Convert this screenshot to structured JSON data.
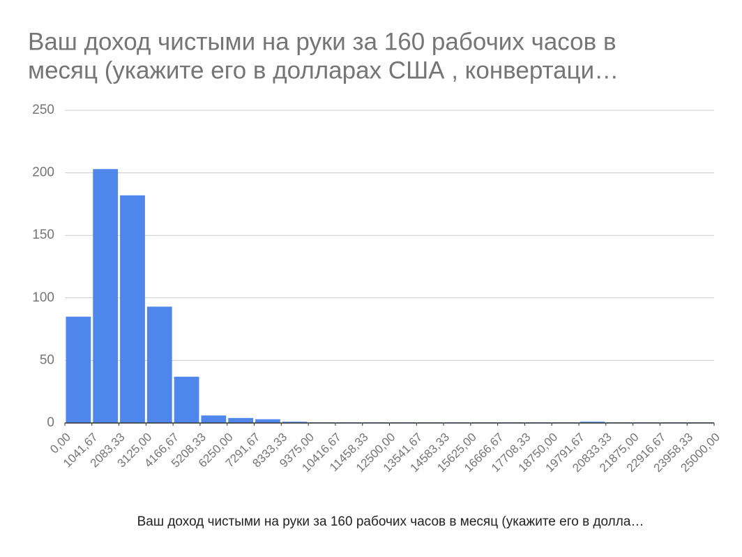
{
  "chart_data": {
    "type": "histogram",
    "title": [
      "Ваш доход чистыми на руки за 160 рабочих часов в",
      "месяц (укажите его в  долларах США , конвертаци…"
    ],
    "x_label": "Ваш доход чистыми на руки за 160 рабочих часов в месяц (укажите его в  долла…",
    "bins": [
      0,
      1041.67,
      2083.33,
      3125,
      4166.67,
      5208.33,
      6250,
      7291.67,
      8333.33,
      9375,
      10416.67,
      11458.33,
      12500,
      13541.67,
      14583.33,
      15625,
      16666.67,
      17708.33,
      18750,
      19791.67,
      20833.33,
      21875,
      22916.67,
      23958.33,
      25000
    ],
    "values": [
      85,
      203,
      182,
      93,
      37,
      6,
      4,
      3,
      1,
      0,
      0,
      0,
      0,
      0,
      0,
      0,
      0,
      0,
      0,
      1,
      0,
      0,
      0,
      0
    ],
    "color": "#4f86ec",
    "xlim": [
      0,
      25000
    ],
    "xticks": [
      {
        "value": 0,
        "label": "0,00"
      },
      {
        "value": 1041.67,
        "label": "1041,67"
      },
      {
        "value": 2083.33,
        "label": "2083,33"
      },
      {
        "value": 3125,
        "label": "3125,00"
      },
      {
        "value": 4166.67,
        "label": "4166,67"
      },
      {
        "value": 5208.33,
        "label": "5208,33"
      },
      {
        "value": 6250,
        "label": "6250,00"
      },
      {
        "value": 7291.67,
        "label": "7291,67"
      },
      {
        "value": 8333.33,
        "label": "8333,33"
      },
      {
        "value": 9375,
        "label": "9375,00"
      },
      {
        "value": 10416.67,
        "label": "10416,67"
      },
      {
        "value": 11458.33,
        "label": "11458,33"
      },
      {
        "value": 12500,
        "label": "12500,00"
      },
      {
        "value": 13541.67,
        "label": "13541,67"
      },
      {
        "value": 14583.33,
        "label": "14583,33"
      },
      {
        "value": 15625,
        "label": "15625,00"
      },
      {
        "value": 16666.67,
        "label": "16666,67"
      },
      {
        "value": 17708.33,
        "label": "17708,33"
      },
      {
        "value": 18750,
        "label": "18750,00"
      },
      {
        "value": 19791.67,
        "label": "19791,67"
      },
      {
        "value": 20833.33,
        "label": "20833,33"
      },
      {
        "value": 21875,
        "label": "21875,00"
      },
      {
        "value": 22916.67,
        "label": "22916,67"
      },
      {
        "value": 23958.33,
        "label": "23958,33"
      },
      {
        "value": 25000,
        "label": "25000,00"
      }
    ],
    "ylim": [
      0,
      250
    ],
    "yticks": [
      0,
      50,
      100,
      150,
      200,
      250
    ],
    "grid": true
  }
}
